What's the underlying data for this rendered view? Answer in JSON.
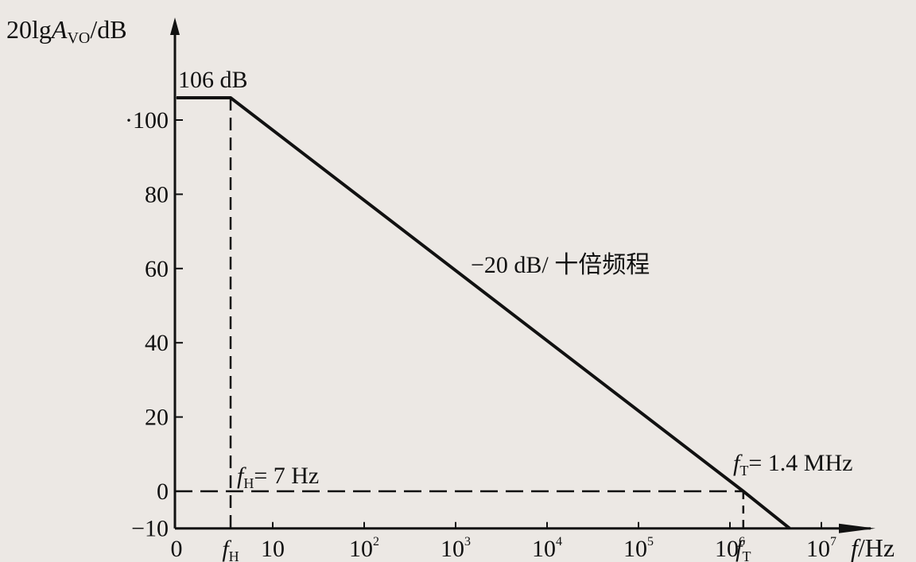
{
  "chart_data": {
    "type": "line",
    "title": "",
    "ylabel": {
      "prefix": "20lg",
      "var": "A",
      "sub": "VO",
      "suffix": "/dB"
    },
    "xlabel": {
      "var": "f",
      "suffix": "/Hz"
    },
    "x_scale": "log",
    "ylim": [
      -10,
      110
    ],
    "y_ticks": [
      100,
      80,
      60,
      40,
      20,
      0,
      -10
    ],
    "y_tick_labels": [
      "·100",
      "80",
      "60",
      "40",
      "20",
      "0",
      "−10"
    ],
    "x_ticks": [
      {
        "label": "0",
        "sup": ""
      },
      {
        "label": "f",
        "sub": "H"
      },
      {
        "label": "10",
        "sup": ""
      },
      {
        "label": "10",
        "sup": "2"
      },
      {
        "label": "10",
        "sup": "3"
      },
      {
        "label": "10",
        "sup": "4"
      },
      {
        "label": "10",
        "sup": "5"
      },
      {
        "label": "10",
        "sup": "6"
      },
      {
        "label": "f",
        "sub": "T"
      },
      {
        "label": "10",
        "sup": "7"
      }
    ],
    "series": [
      {
        "points": [
          {
            "x": 0,
            "y": 106
          },
          {
            "x": 7,
            "y": 106
          },
          {
            "x": 1400000,
            "y": 0
          },
          {
            "x": 4500000,
            "y": -10
          }
        ]
      }
    ],
    "annotations": {
      "dc_gain": "106 dB",
      "slope": "−20 dB/ 十倍频程",
      "fh_label": {
        "var": "f",
        "sub": "H",
        "text": "= 7 Hz"
      },
      "ft_label": {
        "var": "f",
        "sub": "T",
        "text": "= 1.4 MHz"
      }
    }
  }
}
